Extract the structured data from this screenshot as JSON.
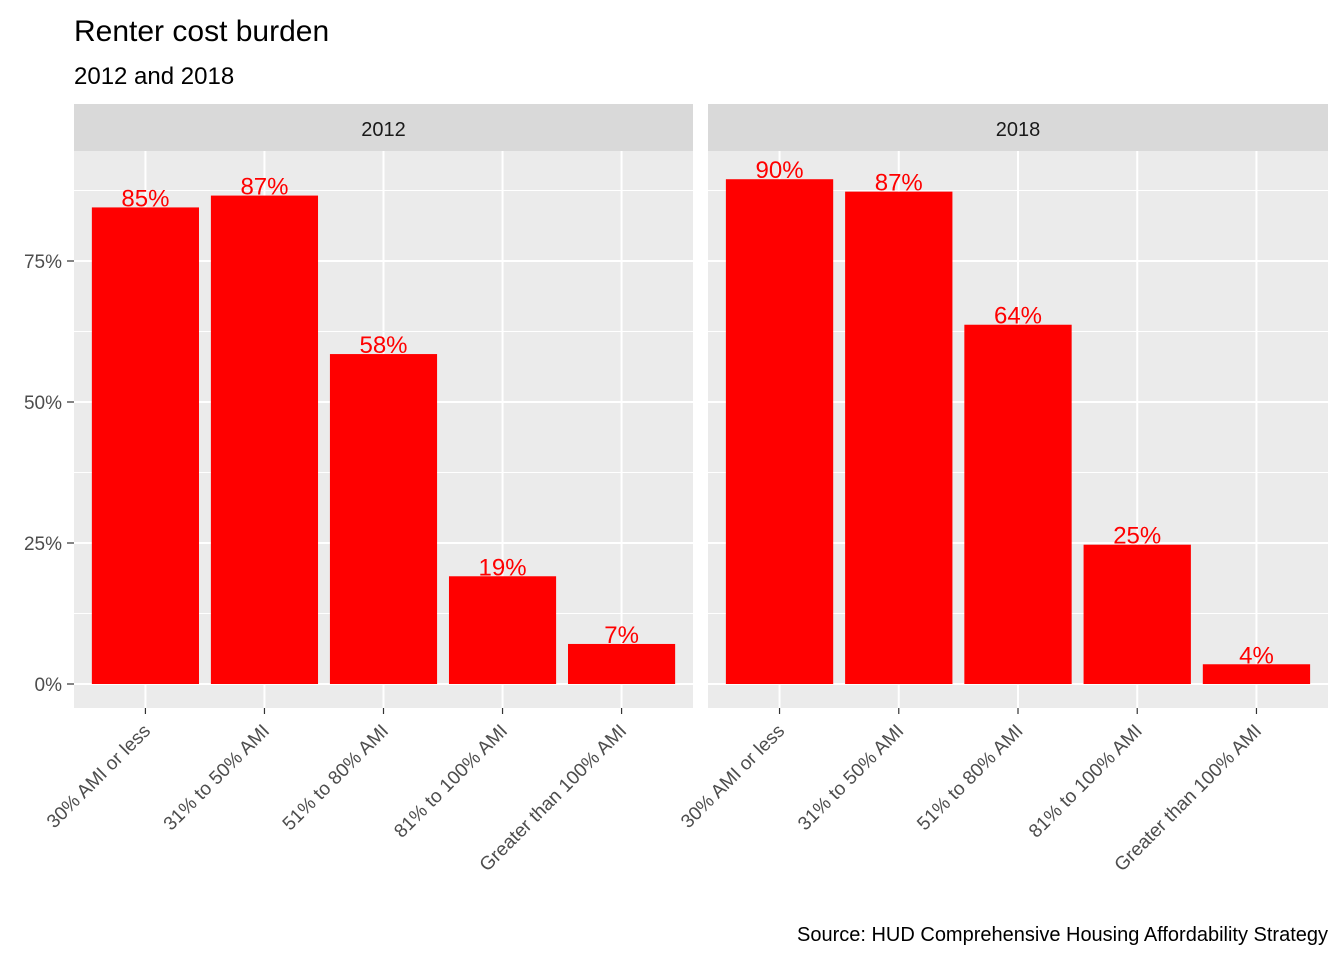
{
  "chart_data": {
    "type": "bar",
    "title": "Renter cost burden",
    "subtitle": "2012 and 2018",
    "caption": "Source: HUD Comprehensive Housing Affordability Strategy",
    "xlabel": "",
    "ylabel": "",
    "ylim": [
      0,
      0.95
    ],
    "y_ticks": [
      {
        "value": 0,
        "label": "0%"
      },
      {
        "value": 0.25,
        "label": "25%"
      },
      {
        "value": 0.5,
        "label": "50%"
      },
      {
        "value": 0.75,
        "label": "75%"
      }
    ],
    "categories": [
      "30% AMI or less",
      "31% to 50% AMI",
      "51% to 80% AMI",
      "81% to 100% AMI",
      "Greater than 100% AMI"
    ],
    "bar_color": "#ff0000",
    "label_color": "#ff0000",
    "panel_bg": "#ebebeb",
    "strip_bg": "#d9d9d9",
    "facets": [
      {
        "name": "2012",
        "values": [
          0.845,
          0.866,
          0.585,
          0.191,
          0.071
        ],
        "labels": [
          "85%",
          "87%",
          "58%",
          "19%",
          "7%"
        ]
      },
      {
        "name": "2018",
        "values": [
          0.895,
          0.873,
          0.637,
          0.247,
          0.035
        ],
        "labels": [
          "90%",
          "87%",
          "64%",
          "25%",
          "4%"
        ]
      }
    ]
  }
}
